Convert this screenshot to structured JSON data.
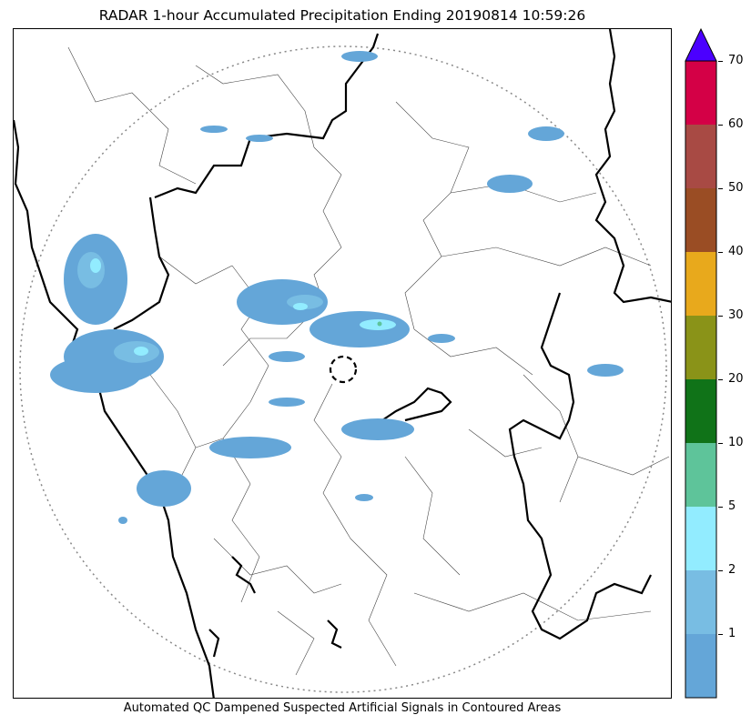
{
  "title": "RADAR 1-hour Accumulated Precipitation Ending 20190814 10:59:26",
  "footer": "Automated QC Dampened Suspected Artificial Signals in Contoured Areas",
  "colorbar": {
    "extend": "max",
    "extend_color": "#4b00ff",
    "bins": [
      {
        "color": "#64a6d8"
      },
      {
        "color": "#78bde3"
      },
      {
        "color": "#92ecff"
      },
      {
        "color": "#5ec49a"
      },
      {
        "color": "#107318"
      },
      {
        "color": "#8a9318"
      },
      {
        "color": "#e8a91c"
      },
      {
        "color": "#9a4d24"
      },
      {
        "color": "#a84a44"
      },
      {
        "color": "#d40046"
      }
    ],
    "tick_labels": [
      "1",
      "2",
      "5",
      "10",
      "20",
      "30",
      "40",
      "50",
      "60",
      "70"
    ]
  },
  "legend_colors": {
    "precip_light": "#64a6d8",
    "precip_medium": "#78bde3",
    "precip_heavy": "#92ecff",
    "precip_peak": "#5ec49a",
    "range_ring": "#888888",
    "admin_boundary": "#444444",
    "coastline_state": "#000000"
  }
}
